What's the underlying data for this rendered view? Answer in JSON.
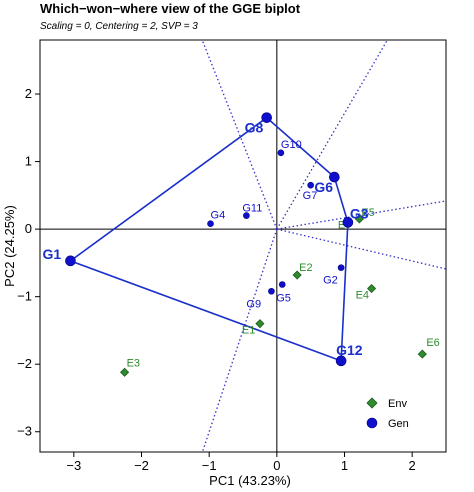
{
  "chart_data": {
    "type": "scatter",
    "title": "Which−won−where view of the GGE biplot",
    "subtitle": "Scaling = 0, Centering = 2, SVP = 3",
    "xlabel": "PC1 (43.23%)",
    "ylabel": "PC2 (24.25%)",
    "xlim": [
      -3.5,
      2.5
    ],
    "ylim": [
      -3.3,
      2.8
    ],
    "xticks": [
      -3,
      -2,
      -1,
      0,
      1,
      2
    ],
    "yticks": [
      -3,
      -2,
      -1,
      0,
      1,
      2
    ],
    "xtick_labels": [
      "−3",
      "−2",
      "−1",
      "0",
      "1",
      "2"
    ],
    "ytick_labels": [
      "−3",
      "−2",
      "−1",
      "0",
      "1",
      "2"
    ],
    "colors": {
      "env": "#2e8b2e",
      "gen": "#1010cc",
      "polygon": "#1a2fcc",
      "rays": "#3333cc"
    },
    "legend": {
      "placement": "bottom-right",
      "items": [
        {
          "label": "Env",
          "marker": "diamond",
          "color": "#2e8b2e"
        },
        {
          "label": "Gen",
          "marker": "circle",
          "color": "#1010cc"
        }
      ]
    },
    "series": [
      {
        "name": "Env",
        "marker": "diamond",
        "points": [
          {
            "label": "E1",
            "x": -0.25,
            "y": -1.4
          },
          {
            "label": "E2",
            "x": 0.3,
            "y": -0.68
          },
          {
            "label": "E3",
            "x": -2.25,
            "y": -2.12
          },
          {
            "label": "E4",
            "x": 1.4,
            "y": -0.88
          },
          {
            "label": "E5",
            "x": 1.22,
            "y": 0.15
          },
          {
            "label": "E6",
            "x": 2.15,
            "y": -1.85
          },
          {
            "label": "E7",
            "x": 1.05,
            "y": 0.08
          }
        ]
      },
      {
        "name": "Gen",
        "marker": "circle",
        "points": [
          {
            "label": "G1",
            "x": -3.05,
            "y": -0.47,
            "vertex": true
          },
          {
            "label": "G2",
            "x": 0.95,
            "y": -0.57
          },
          {
            "label": "G3",
            "x": 1.05,
            "y": 0.1,
            "vertex": true
          },
          {
            "label": "G4",
            "x": -0.98,
            "y": 0.08
          },
          {
            "label": "G5",
            "x": 0.08,
            "y": -0.82
          },
          {
            "label": "G6",
            "x": 0.85,
            "y": 0.77,
            "vertex": true
          },
          {
            "label": "G7",
            "x": 0.5,
            "y": 0.65
          },
          {
            "label": "G8",
            "x": -0.15,
            "y": 1.65,
            "vertex": true
          },
          {
            "label": "G9",
            "x": -0.08,
            "y": -0.92
          },
          {
            "label": "G10",
            "x": 0.06,
            "y": 1.13
          },
          {
            "label": "G11",
            "x": -0.45,
            "y": 0.2
          },
          {
            "label": "G12",
            "x": 0.95,
            "y": -1.95,
            "vertex": true
          }
        ]
      }
    ],
    "polygon": [
      "G1",
      "G8",
      "G6",
      "G3",
      "G12"
    ],
    "rays": [
      {
        "x": 3.85,
        "y": 6.6
      },
      {
        "x": 3.6,
        "y": 0.6
      },
      {
        "x": 3.6,
        "y": -0.85
      },
      {
        "x": -1.1,
        "y": -3.3
      },
      {
        "x": -2.6,
        "y": 6.6
      }
    ]
  }
}
